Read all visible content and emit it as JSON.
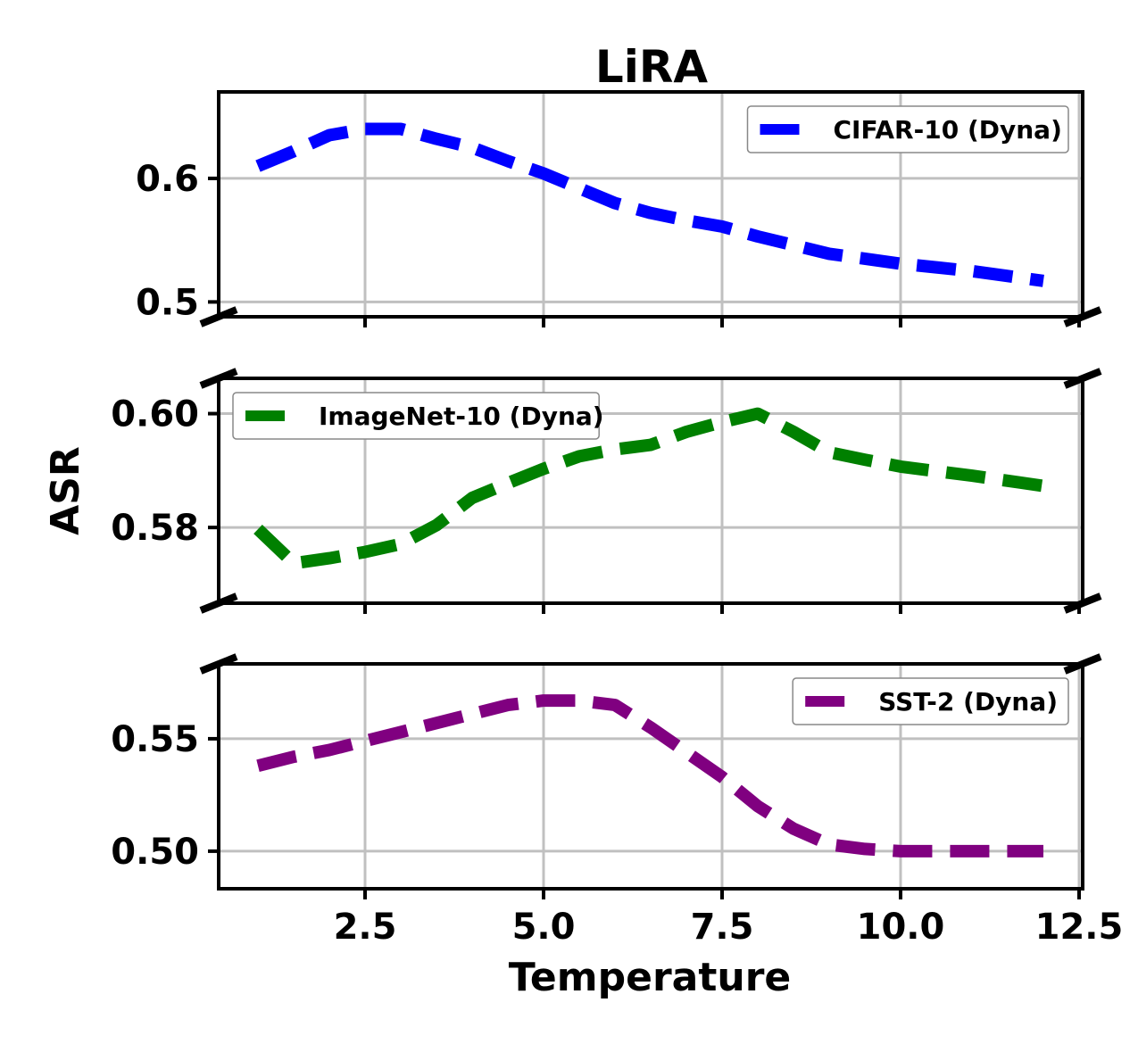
{
  "chart_data": {
    "type": "line",
    "layout": "broken-y-axis, 3 stacked panels, shared x axis",
    "title": "LiRA",
    "xlabel": "Temperature",
    "ylabel": "ASR",
    "xlim": [
      0.45,
      12.55
    ],
    "xticks": [
      2.5,
      5.0,
      7.5,
      10.0,
      12.5
    ],
    "xtick_labels": [
      "2.5",
      "5.0",
      "7.5",
      "10.0",
      "12.5"
    ],
    "grid": true,
    "panels": [
      {
        "ylim": [
          0.488,
          0.67
        ],
        "yticks": [
          0.5,
          0.6
        ],
        "ytick_labels": [
          "0.5",
          "0.6"
        ],
        "legend_position": "top-right",
        "series": [
          {
            "name": "CIFAR-10 (Dyna)",
            "color": "#0000ff",
            "x": [
              1.0,
              1.5,
              2.0,
              2.5,
              3.0,
              3.5,
              4.0,
              4.5,
              5.0,
              5.5,
              6.0,
              6.5,
              7.0,
              7.5,
              8.0,
              8.5,
              9.0,
              9.5,
              10.0,
              10.5,
              11.0,
              11.5,
              12.0
            ],
            "y": [
              0.61,
              0.622,
              0.635,
              0.64,
              0.64,
              0.632,
              0.625,
              0.614,
              0.604,
              0.592,
              0.58,
              0.572,
              0.566,
              0.561,
              0.553,
              0.546,
              0.539,
              0.535,
              0.531,
              0.528,
              0.525,
              0.521,
              0.517
            ]
          }
        ]
      },
      {
        "ylim": [
          0.5667,
          0.6062
        ],
        "yticks": [
          0.58,
          0.6
        ],
        "ytick_labels": [
          "0.58",
          "0.60"
        ],
        "legend_position": "top-left",
        "series": [
          {
            "name": "ImageNet-10 (Dyna)",
            "color": "#008000",
            "x": [
              1.0,
              1.5,
              2.0,
              2.5,
              3.0,
              3.5,
              4.0,
              4.5,
              5.0,
              5.5,
              6.0,
              6.5,
              7.0,
              7.5,
              8.0,
              8.5,
              9.0,
              9.5,
              10.0,
              10.5,
              11.0,
              11.5,
              12.0
            ],
            "y": [
              0.5797,
              0.5737,
              0.5746,
              0.5757,
              0.5771,
              0.5804,
              0.5852,
              0.5878,
              0.5903,
              0.5925,
              0.5937,
              0.5945,
              0.5968,
              0.5985,
              0.6,
              0.5968,
              0.5932,
              0.5919,
              0.5907,
              0.5899,
              0.5891,
              0.5882,
              0.5873
            ]
          }
        ]
      },
      {
        "ylim": [
          0.4833,
          0.5833
        ],
        "yticks": [
          0.5,
          0.55
        ],
        "ytick_labels": [
          "0.50",
          "0.55"
        ],
        "legend_position": "top-right",
        "series": [
          {
            "name": "SST-2 (Dyna)",
            "color": "#800080",
            "x": [
              1.0,
              1.5,
              2.0,
              2.5,
              3.0,
              3.5,
              4.0,
              4.5,
              5.0,
              5.5,
              6.0,
              6.5,
              7.0,
              7.5,
              8.0,
              8.5,
              9.0,
              9.5,
              10.0,
              10.5,
              11.0,
              11.5,
              12.0
            ],
            "y": [
              0.538,
              0.542,
              0.545,
              0.549,
              0.553,
              0.557,
              0.561,
              0.565,
              0.567,
              0.567,
              0.565,
              0.555,
              0.544,
              0.533,
              0.52,
              0.51,
              0.503,
              0.501,
              0.5,
              0.5,
              0.5,
              0.5,
              0.5
            ]
          }
        ]
      }
    ]
  }
}
